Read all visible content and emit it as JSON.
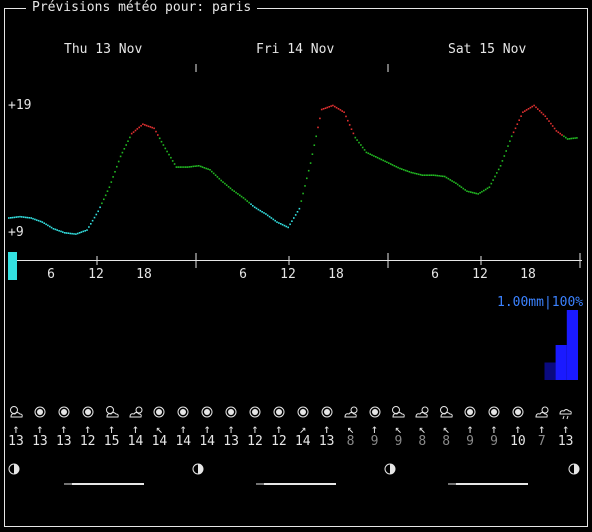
{
  "title": "Prévisions météo pour: paris",
  "days": [
    "Thu 13 Nov",
    "Fri 14 Nov",
    "Sat 15 Nov"
  ],
  "temp_axis": {
    "max_label": "+19",
    "min_label": "+9"
  },
  "hour_labels": [
    "6",
    "12",
    "18",
    "6",
    "12",
    "18",
    "6",
    "12",
    "18"
  ],
  "precip": {
    "label": "1.00mm|100%"
  },
  "weather_icons": [
    "partly-cloudy-icon",
    "sun-icon",
    "sun-icon",
    "sun-icon",
    "partly-cloudy-icon",
    "cloud-sun-icon",
    "sun-icon",
    "sun-icon",
    "sun-icon",
    "sun-icon",
    "sun-icon",
    "sun-icon",
    "sun-icon",
    "sun-icon",
    "cloud-sun-icon",
    "sun-icon",
    "partly-cloudy-icon",
    "cloud-sun-icon",
    "partly-cloudy-icon",
    "sun-icon",
    "sun-icon",
    "sun-icon",
    "cloud-sun-icon",
    "rain-cloud-icon"
  ],
  "wind_dirs": [
    "↑",
    "↑",
    "↑",
    "↑",
    "↑",
    "↑",
    "↖",
    "↑",
    "↑",
    "↑",
    "↑",
    "↑",
    "↗",
    "↑",
    "↖",
    "↑",
    "↖",
    "↖",
    "↖",
    "↑",
    "↑",
    "↑",
    "↑",
    "↑"
  ],
  "wind_speeds": [
    "13",
    "13",
    "13",
    "12",
    "15",
    "14",
    "14",
    "14",
    "14",
    "13",
    "12",
    "12",
    "14",
    "13",
    "8",
    "9",
    "9",
    "8",
    "8",
    "9",
    "9",
    "10",
    "7",
    "13"
  ],
  "colors": {
    "cold": "#33e0e0",
    "mild": "#22b822",
    "warm": "#e03030",
    "precip": "#1a1aff",
    "precip_dark": "#0a0a80",
    "text": "#e6e6e6",
    "dim": "#8a8a8a"
  },
  "chart_data": {
    "type": "line",
    "title": "",
    "xlabel": "",
    "ylabel": "",
    "ylim": [
      9,
      19
    ],
    "series": [
      {
        "values": [
          10.4,
          10.5,
          10.4,
          10.1,
          9.6,
          9.3,
          9.2,
          9.5,
          10.9,
          12.7,
          15.0,
          16.7,
          17.4,
          17.1,
          15.6,
          14.2,
          14.2,
          14.3,
          14.0,
          13.2,
          12.5,
          11.9,
          11.2,
          10.7,
          10.1,
          9.7,
          11.1,
          14.5,
          18.5,
          18.8,
          18.3,
          16.4,
          15.3,
          14.9,
          14.5,
          14.1,
          13.8,
          13.6,
          13.6,
          13.5,
          13.0,
          12.4,
          12.2,
          12.7,
          14.3,
          16.5,
          18.3,
          18.8,
          18.0,
          16.9,
          16.3,
          16.4
        ]
      }
    ],
    "precip_values": [
      0,
      0,
      0,
      0,
      0,
      0,
      0,
      0,
      0,
      0,
      0,
      0,
      0,
      0,
      0,
      0,
      0,
      0,
      0,
      0,
      0,
      0,
      0,
      0,
      0,
      0,
      0,
      0,
      0,
      0,
      0,
      0,
      0,
      0,
      0,
      0,
      0,
      0,
      0,
      0,
      0,
      0,
      0,
      0,
      0,
      0,
      0,
      0,
      0.25,
      0.5,
      1.0,
      0
    ]
  },
  "moon_phases": [
    "moon-first-quarter-icon",
    "moon-first-quarter-icon",
    "moon-first-quarter-icon",
    "moon-first-quarter-icon"
  ]
}
